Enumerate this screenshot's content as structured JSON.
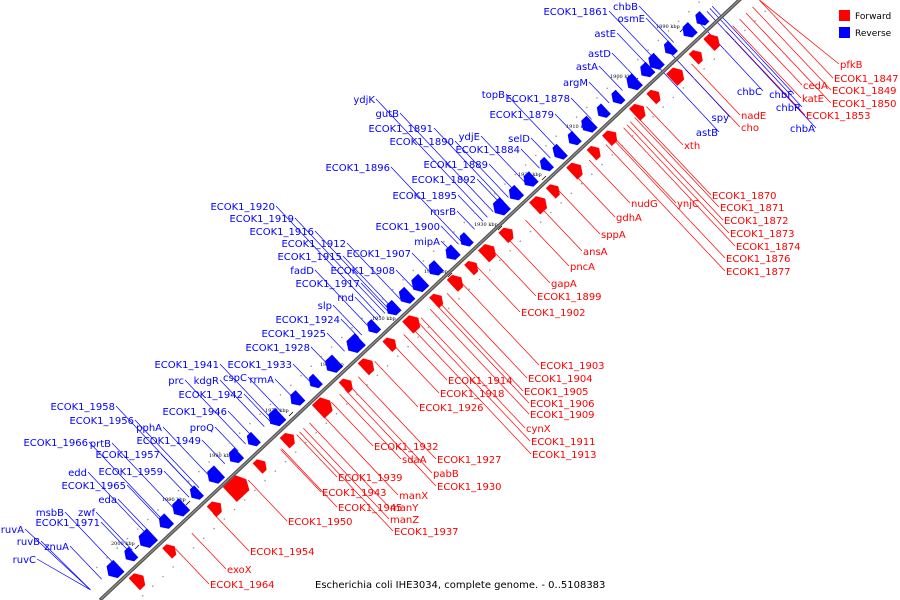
{
  "caption": "Escherichia coli IHE3034, complete genome. - 0..5108383",
  "legend": [
    {
      "label": "Forward",
      "color": "#ff0000"
    },
    {
      "label": "Reverse",
      "color": "#0000ff"
    }
  ],
  "colors": {
    "forward": "#ff0000",
    "reverse": "#0000ff",
    "backbone": "#555555"
  },
  "ticks": [
    "1890 kbp",
    "1900 kbp",
    "1910 kbp",
    "1920 kbp",
    "1930 kbp",
    "1940 kbp",
    "1950 kbp",
    "1960 kbp",
    "1970 kbp",
    "1980 kbp",
    "1990 kbp",
    "2000 kbp"
  ],
  "forward_labels": [
    "pfkB",
    "ECOK1_1847",
    "katE",
    "ECOK1_1849",
    "cedA",
    "ECOK1_1850",
    "ECOK1_1853",
    "nadE",
    "cho",
    "xth",
    "ECOK1_1870",
    "ECOK1_1871",
    "ECOK1_1872",
    "ECOK1_1873",
    "ECOK1_1874",
    "ECOK1_1876",
    "ECOK1_1877",
    "nudG",
    "ynjC",
    "gdhA",
    "sppA",
    "ansA",
    "pncA",
    "gapA",
    "ECOK1_1899",
    "ECOK1_1902",
    "ECOK1_1903",
    "ECOK1_1904",
    "ECOK1_1914",
    "ECOK1_1918",
    "ECOK1_1905",
    "ECOK1_1906",
    "ECOK1_1926",
    "ECOK1_1909",
    "cynX",
    "ECOK1_1911",
    "ECOK1_1932",
    "ECOK1_1913",
    "sdaA",
    "ECOK1_1927",
    "pabB",
    "ECOK1_1939",
    "ECOK1_1930",
    "ECOK1_1943",
    "manX",
    "ECOK1_1945",
    "manY",
    "manZ",
    "ECOK1_1950",
    "ECOK1_1937",
    "ECOK1_1954",
    "exoX",
    "ECOK1_1964"
  ],
  "reverse_labels": [
    "chbB",
    "ECOK1_1861",
    "osmE",
    "astE",
    "astD",
    "astA",
    "argM",
    "topB",
    "ECOK1_1878",
    "ECOK1_1879",
    "chbC",
    "chbF",
    "chbR",
    "chbA",
    "spy",
    "astB",
    "ydjK",
    "gutB",
    "ECOK1_1891",
    "ECOK1_1890",
    "ydjE",
    "selD",
    "ECOK1_1884",
    "ECOK1_1896",
    "ECOK1_1889",
    "ECOK1_1892",
    "ECOK1_1895",
    "msrB",
    "ECOK1_1920",
    "ECOK1_1919",
    "ECOK1_1916",
    "ECOK1_1900",
    "mipA",
    "ECOK1_1912",
    "ECOK1_1915",
    "ECOK1_1907",
    "fadD",
    "ECOK1_1908",
    "ECOK1_1917",
    "rnd",
    "slp",
    "ECOK1_1924",
    "ECOK1_1925",
    "ECOK1_1928",
    "ECOK1_1941",
    "ECOK1_1933",
    "prc",
    "kdgR",
    "cspC",
    "rrmA",
    "ECOK1_1942",
    "ECOK1_1958",
    "ECOK1_1956",
    "pphA",
    "ECOK1_1946",
    "proQ",
    "ECOK1_1949",
    "ECOK1_1966",
    "prtB",
    "ECOK1_1957",
    "edd",
    "ECOK1_1959",
    "ECOK1_1965",
    "eda",
    "msbB",
    "zwf",
    "ECOK1_1971",
    "ruvA",
    "ruvB",
    "znuA",
    "ruvC"
  ]
}
